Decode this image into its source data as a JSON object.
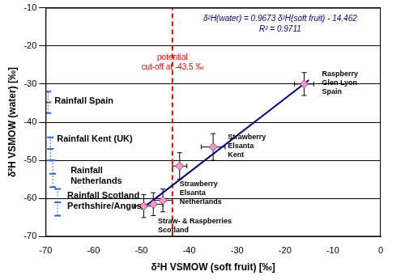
{
  "chart_data": {
    "type": "scatter",
    "x_label": "δ²H VSMOW (soft fruit) [‰]",
    "y_label": "δ²H VSMOW (water) [‰]",
    "xlim": [
      -70,
      0
    ],
    "xticks": [
      -70,
      -60,
      -50,
      -40,
      -30,
      -20,
      -10,
      0
    ],
    "ylim": [
      -70,
      -10
    ],
    "yticks": [
      -70,
      -60,
      -50,
      -40,
      -30,
      -20,
      -10
    ],
    "grid": "y",
    "series": [
      {
        "color": "#ff99cc",
        "marker": "diamond",
        "x": [
          -16,
          -35,
          -42,
          -45.5,
          -47.5,
          -49.5
        ],
        "y": [
          -30,
          -46.5,
          -51.5,
          -60.5,
          -61.5,
          -62
        ],
        "x_err": [
          2,
          2.5,
          1.5,
          2,
          2,
          2
        ],
        "y_err": [
          3,
          3.5,
          3.5,
          3,
          3,
          3
        ],
        "labels": [
          [
            "Raspberry",
            "Glen Lyon",
            "Spain"
          ],
          [
            "Strawberry",
            "Elsanta",
            "Kent"
          ],
          [
            "Strawberry",
            "Elsanta",
            "Netherlands"
          ],
          [
            "Straw- & Raspberries",
            "Scotland"
          ],
          null,
          null
        ]
      },
      {
        "color": "#3366cc",
        "marker": "dash",
        "x": [
          -69.5,
          -69,
          -68.5,
          -67.5
        ],
        "y": [
          -34.8,
          -47,
          -53.5,
          -61
        ],
        "y_err": [
          2.8,
          3,
          3.5,
          3.5
        ],
        "labels": [
          [
            "Rainfall Spain"
          ],
          [
            "Rainfall Kent (UK)"
          ],
          [
            "Rainfall",
            "Netherlands"
          ],
          [
            "Rainfall Scotland",
            "Perthshire/Angus"
          ]
        ]
      }
    ],
    "fit": {
      "slope": 0.9673,
      "intercept": -14.462,
      "x": [
        -50,
        -15
      ],
      "color": "#000080",
      "line_style": "solid",
      "equation": "δ²H(water) = 0.9673 δ²H(soft fruit) - 14.462",
      "r_squared": "R² = 0.9711"
    },
    "cutoff": {
      "x": -43.5,
      "color": "#ff0000",
      "line_style": "dashed",
      "label": [
        "potential",
        "cut-off at -43.5 ‰"
      ]
    }
  }
}
